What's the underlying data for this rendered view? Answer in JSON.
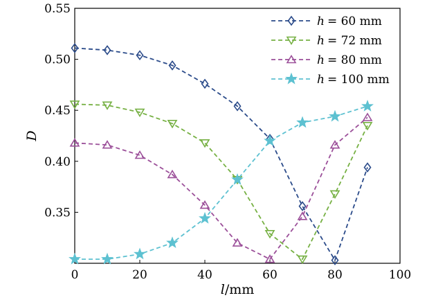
{
  "chart_data": {
    "type": "line",
    "xlabel_var": "l",
    "xlabel_unit": "/mm",
    "ylabel": "D",
    "xlim": [
      0,
      100
    ],
    "ylim": [
      0.3,
      0.55
    ],
    "xticks": [
      "0",
      "20",
      "40",
      "60",
      "80",
      "100"
    ],
    "yticks": [
      "0.35",
      "0.40",
      "0.45",
      "0.50",
      "0.55"
    ],
    "grid": false,
    "legend_position": "top-right",
    "x": [
      0,
      10,
      20,
      30,
      40,
      50,
      60,
      70,
      80,
      90
    ],
    "series": [
      {
        "legend_var": "h",
        "legend_value": "= 60 mm",
        "marker": "diamond",
        "color": "#2b4b8a",
        "values": [
          0.511,
          0.509,
          0.504,
          0.494,
          0.476,
          0.454,
          0.422,
          0.356,
          0.303,
          0.394
        ]
      },
      {
        "legend_var": "h",
        "legend_value": "= 72 mm",
        "marker": "triangle-down",
        "color": "#76b043",
        "values": [
          0.456,
          0.455,
          0.448,
          0.437,
          0.418,
          0.382,
          0.329,
          0.304,
          0.368,
          0.435
        ]
      },
      {
        "legend_var": "h",
        "legend_value": "= 80 mm",
        "marker": "triangle-up",
        "color": "#9b4f99",
        "values": [
          0.418,
          0.416,
          0.406,
          0.387,
          0.357,
          0.32,
          0.304,
          0.346,
          0.416,
          0.443
        ]
      },
      {
        "legend_var": "h",
        "legend_value": "= 100 mm",
        "marker": "star",
        "color": "#5dc1d1",
        "values": [
          0.304,
          0.304,
          0.309,
          0.32,
          0.344,
          0.382,
          0.42,
          0.438,
          0.444,
          0.454
        ]
      }
    ]
  }
}
